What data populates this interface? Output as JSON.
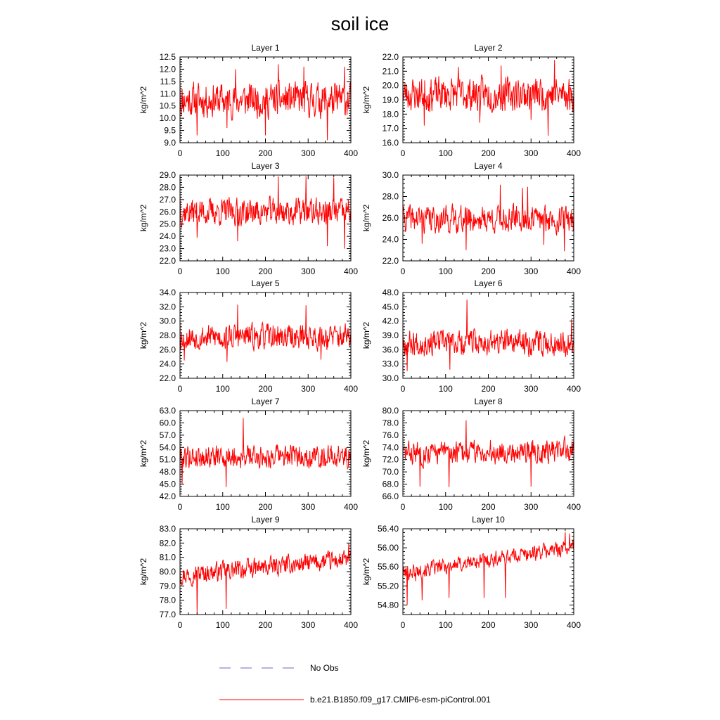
{
  "figure": {
    "title": "soil ice",
    "colors": {
      "model": "#ff0000",
      "obs": "#6a6acd",
      "axis": "#000000"
    }
  },
  "legend": [
    {
      "label": "No Obs",
      "style": "dashed",
      "color": "#6a6acd"
    },
    {
      "label": "b.e21.B1850.f09_g17.CMIP6-esm-piControl.001",
      "style": "solid",
      "color": "#ff0000"
    }
  ],
  "chart_data": [
    {
      "type": "line",
      "title": "Layer 1",
      "xlabel": "",
      "ylabel": "kg/m^2",
      "xlim": [
        0,
        400
      ],
      "ylim": [
        9.0,
        12.5
      ],
      "xticks": [
        "0",
        "100",
        "200",
        "300",
        "400"
      ],
      "yticks": [
        "9.0",
        "9.5",
        "10.0",
        "10.5",
        "11.0",
        "11.5",
        "12.0",
        "12.5"
      ],
      "series": [
        {
          "color": "#ff0000",
          "mean": 10.75,
          "amp": 0.95,
          "trend": 0,
          "seed": 11,
          "x": [
            0,
            40,
            110,
            130,
            200,
            230,
            290,
            345,
            360,
            385,
            400
          ],
          "y": [
            11.6,
            9.3,
            9.6,
            12.0,
            9.3,
            12.2,
            12.1,
            9.1,
            10.3,
            12.1,
            10.6
          ]
        }
      ]
    },
    {
      "type": "line",
      "title": "Layer 2",
      "xlabel": "",
      "ylabel": "kg/m^2",
      "xlim": [
        0,
        400
      ],
      "ylim": [
        16.0,
        22.0
      ],
      "xticks": [
        "0",
        "100",
        "200",
        "300",
        "400"
      ],
      "yticks": [
        "16.0",
        "17.0",
        "18.0",
        "19.0",
        "20.0",
        "21.0",
        "22.0"
      ],
      "series": [
        {
          "color": "#ff0000",
          "mean": 19.4,
          "amp": 1.6,
          "trend": 0,
          "seed": 23,
          "x": [
            0,
            50,
            130,
            180,
            230,
            300,
            340,
            355,
            400
          ],
          "y": [
            20.4,
            17.2,
            21.3,
            17.4,
            21.4,
            17.6,
            16.5,
            21.8,
            19.2
          ]
        }
      ]
    },
    {
      "type": "line",
      "title": "Layer 3",
      "xlabel": "",
      "ylabel": "kg/m^2",
      "xlim": [
        0,
        400
      ],
      "ylim": [
        22.0,
        29.0
      ],
      "xticks": [
        "0",
        "100",
        "200",
        "300",
        "400"
      ],
      "yticks": [
        "22.0",
        "23.0",
        "24.0",
        "25.0",
        "26.0",
        "27.0",
        "28.0",
        "29.0"
      ],
      "series": [
        {
          "color": "#ff0000",
          "mean": 26.0,
          "amp": 1.5,
          "trend": 0,
          "seed": 37,
          "x": [
            0,
            40,
            135,
            230,
            295,
            345,
            360,
            385,
            400
          ],
          "y": [
            27.5,
            23.9,
            23.6,
            28.9,
            28.9,
            23.2,
            28.8,
            23.0,
            26.2
          ]
        }
      ]
    },
    {
      "type": "line",
      "title": "Layer 4",
      "xlabel": "",
      "ylabel": "kg/m^2",
      "xlim": [
        0,
        400
      ],
      "ylim": [
        22.0,
        30.0
      ],
      "xticks": [
        "0",
        "100",
        "200",
        "300",
        "400"
      ],
      "yticks": [
        "22.0",
        "24.0",
        "26.0",
        "28.0",
        "30.0"
      ],
      "series": [
        {
          "color": "#ff0000",
          "mean": 25.9,
          "amp": 1.7,
          "trend": 0,
          "seed": 41,
          "x": [
            0,
            45,
            148,
            228,
            280,
            292,
            330,
            378,
            400
          ],
          "y": [
            26.6,
            23.6,
            23.0,
            29.1,
            28.8,
            28.9,
            23.5,
            22.9,
            26.7
          ]
        }
      ]
    },
    {
      "type": "line",
      "title": "Layer 5",
      "xlabel": "",
      "ylabel": "kg/m^2",
      "xlim": [
        0,
        400
      ],
      "ylim": [
        22.0,
        34.0
      ],
      "xticks": [
        "0",
        "100",
        "200",
        "300",
        "400"
      ],
      "yticks": [
        "22.0",
        "24.0",
        "26.0",
        "28.0",
        "30.0",
        "32.0",
        "34.0"
      ],
      "series": [
        {
          "color": "#ff0000",
          "mean": 27.8,
          "amp": 2.4,
          "trend": 0,
          "seed": 53,
          "x": [
            0,
            10,
            110,
            135,
            295,
            330,
            400
          ],
          "y": [
            30.1,
            24.5,
            24.3,
            32.3,
            32.2,
            24.6,
            27.0
          ]
        }
      ]
    },
    {
      "type": "line",
      "title": "Layer 6",
      "xlabel": "",
      "ylabel": "kg/m^2",
      "xlim": [
        0,
        400
      ],
      "ylim": [
        30.0,
        48.0
      ],
      "xticks": [
        "0",
        "100",
        "200",
        "300",
        "400"
      ],
      "yticks": [
        "30.0",
        "33.0",
        "36.0",
        "39.0",
        "42.0",
        "45.0",
        "48.0"
      ],
      "series": [
        {
          "color": "#ff0000",
          "mean": 37.5,
          "amp": 3.6,
          "trend": 0,
          "seed": 67,
          "x": [
            0,
            10,
            110,
            150,
            395,
            400
          ],
          "y": [
            40.0,
            31.5,
            31.8,
            46.5,
            42.4,
            37.5
          ]
        }
      ]
    },
    {
      "type": "line",
      "title": "Layer 7",
      "xlabel": "",
      "ylabel": "kg/m^2",
      "xlim": [
        0,
        400
      ],
      "ylim": [
        42.0,
        63.0
      ],
      "xticks": [
        "0",
        "100",
        "200",
        "300",
        "400"
      ],
      "yticks": [
        "42.0",
        "45.0",
        "48.0",
        "51.0",
        "54.0",
        "57.0",
        "60.0",
        "63.0"
      ],
      "series": [
        {
          "color": "#ff0000",
          "mean": 51.8,
          "amp": 3.8,
          "trend": 0,
          "seed": 79,
          "x": [
            0,
            5,
            108,
            148,
            400
          ],
          "y": [
            54.5,
            45.1,
            44.3,
            61.2,
            52.0
          ]
        }
      ]
    },
    {
      "type": "line",
      "title": "Layer 8",
      "xlabel": "",
      "ylabel": "kg/m^2",
      "xlim": [
        0,
        400
      ],
      "ylim": [
        66.0,
        80.0
      ],
      "xticks": [
        "0",
        "100",
        "200",
        "300",
        "400"
      ],
      "yticks": [
        "66.0",
        "68.0",
        "70.0",
        "72.0",
        "74.0",
        "76.0",
        "78.0",
        "80.0"
      ],
      "series": [
        {
          "color": "#ff0000",
          "mean": 73.3,
          "amp": 2.6,
          "trend": 0.6,
          "seed": 83,
          "x": [
            0,
            40,
            108,
            148,
            300,
            400
          ],
          "y": [
            73.5,
            67.6,
            67.5,
            78.4,
            67.6,
            73.5
          ]
        }
      ]
    },
    {
      "type": "line",
      "title": "Layer 9",
      "xlabel": "",
      "ylabel": "kg/m^2",
      "xlim": [
        0,
        400
      ],
      "ylim": [
        77.0,
        83.0
      ],
      "xticks": [
        "0",
        "100",
        "200",
        "300",
        "400"
      ],
      "yticks": [
        "77.0",
        "78.0",
        "79.0",
        "80.0",
        "81.0",
        "82.0",
        "83.0"
      ],
      "series": [
        {
          "color": "#ff0000",
          "mean": 80.3,
          "amp": 0.9,
          "trend": 1.1,
          "seed": 97,
          "x": [
            0,
            40,
            108,
            395,
            400
          ],
          "y": [
            80.5,
            77.0,
            77.4,
            82.0,
            81.4
          ]
        }
      ]
    },
    {
      "type": "line",
      "title": "Layer 10",
      "xlabel": "",
      "ylabel": "kg/m^2",
      "xlim": [
        0,
        400
      ],
      "ylim": [
        54.6,
        56.4
      ],
      "xticks": [
        "0",
        "100",
        "200",
        "300",
        "400"
      ],
      "yticks": [
        "54.80",
        "55.20",
        "55.60",
        "56.00",
        "56.40"
      ],
      "series": [
        {
          "color": "#ff0000",
          "mean": 55.75,
          "amp": 0.22,
          "trend": 0.55,
          "seed": 101,
          "x": [
            0,
            10,
            30,
            45,
            108,
            190,
            240,
            380,
            390,
            400
          ],
          "y": [
            55.45,
            54.8,
            55.3,
            54.9,
            54.95,
            54.95,
            54.95,
            56.33,
            56.3,
            55.95
          ]
        }
      ]
    }
  ]
}
